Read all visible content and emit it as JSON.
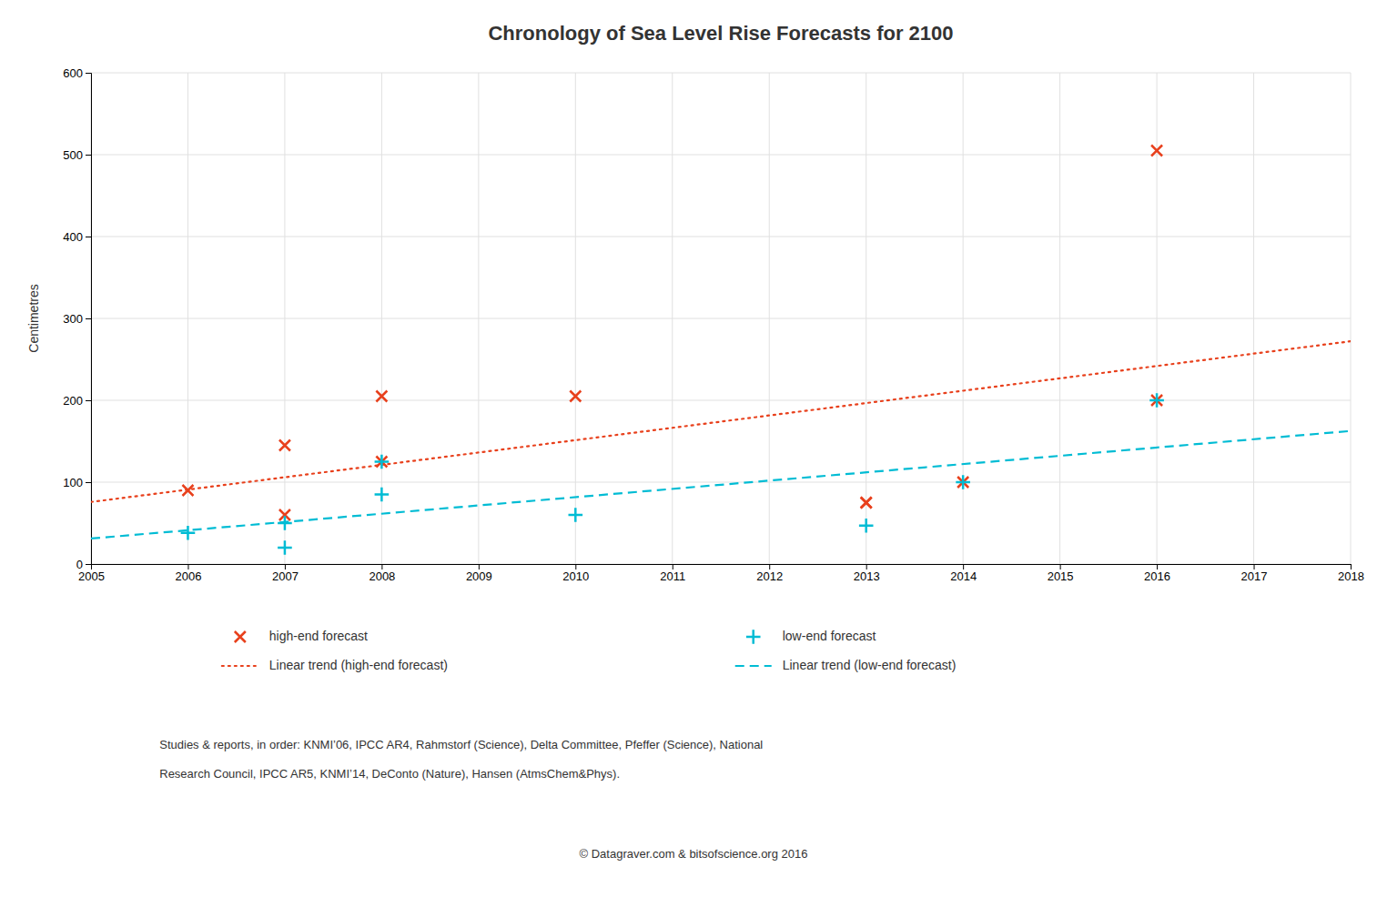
{
  "chart_data": {
    "type": "scatter",
    "title": "Chronology of Sea Level Rise Forecasts for 2100",
    "ylabel": "Centimetres",
    "xlim": [
      2005,
      2018
    ],
    "ylim": [
      0,
      600
    ],
    "xticks": [
      2005,
      2006,
      2007,
      2008,
      2009,
      2010,
      2011,
      2012,
      2013,
      2014,
      2015,
      2016,
      2017,
      2018
    ],
    "yticks": [
      0,
      100,
      200,
      300,
      400,
      500,
      600
    ],
    "grid": true,
    "legend": "bottom",
    "series": [
      {
        "name": "high-end forecast",
        "type": "scatter",
        "marker": "x",
        "color": "#e8401c",
        "x": [
          2006,
          2007,
          2007,
          2008,
          2008,
          2010,
          2013,
          2013,
          2014,
          2016,
          2016
        ],
        "values": [
          90,
          145,
          60,
          205,
          125,
          205,
          75,
          75,
          100,
          505,
          200
        ]
      },
      {
        "name": "low-end forecast",
        "type": "scatter",
        "marker": "plus",
        "color": "#00bcd4",
        "x": [
          2006,
          2007,
          2007,
          2008,
          2008,
          2010,
          2013,
          2014,
          2016
        ],
        "values": [
          38,
          50,
          20,
          85,
          125,
          60,
          47,
          100,
          200
        ]
      },
      {
        "name": "Linear trend (high-end forecast)",
        "type": "line",
        "line_style": "dotted",
        "color": "#e8401c",
        "x": [
          2005,
          2018
        ],
        "values": [
          75.8,
          272.08
        ]
      },
      {
        "name": "Linear trend (low-end forecast)",
        "type": "line",
        "line_style": "dashed",
        "color": "#00bcd4",
        "x": [
          2005,
          2018
        ],
        "values": [
          31.16,
          162.51
        ]
      }
    ],
    "annotations": [
      "Studies & reports, in order: KNMI’06, IPCC AR4, Rahmstorf (Science), Delta Committee, Pfeffer (Science), National",
      "Research Council, IPCC AR5, KNMI’14, DeConto (Nature), Hansen (AtmsChem&Phys).",
      "© Datagraver.com & bitsofscience.org 2016"
    ]
  }
}
